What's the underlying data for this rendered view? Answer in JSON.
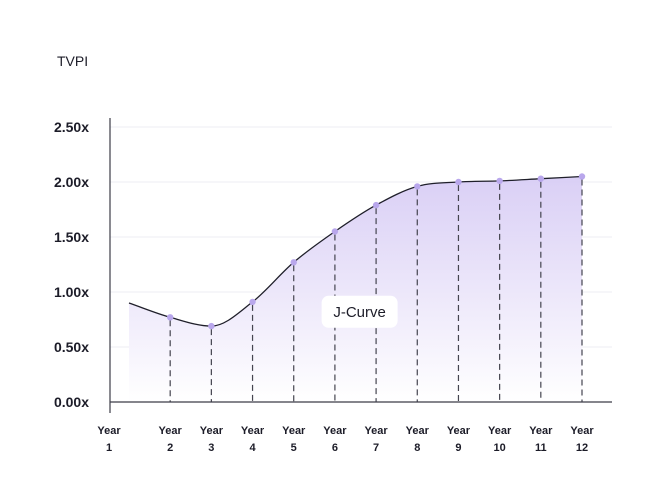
{
  "chart_data": {
    "type": "area",
    "title": "",
    "ylabel": "TVPI",
    "xlabel": "",
    "categories": [
      [
        "Year",
        "1"
      ],
      [
        "Year",
        "2"
      ],
      [
        "Year",
        "3"
      ],
      [
        "Year",
        "4"
      ],
      [
        "Year",
        "5"
      ],
      [
        "Year",
        "6"
      ],
      [
        "Year",
        "7"
      ],
      [
        "Year",
        "8"
      ],
      [
        "Year",
        "9"
      ],
      [
        "Year",
        "10"
      ],
      [
        "Year",
        "11"
      ],
      [
        "Year",
        "12"
      ]
    ],
    "series": [
      {
        "x": [
          1,
          2,
          3,
          4,
          5,
          6,
          7,
          8,
          9,
          10,
          11,
          12
        ],
        "values": [
          0.9,
          0.77,
          0.69,
          0.91,
          1.27,
          1.55,
          1.79,
          1.96,
          2.0,
          2.01,
          2.03,
          2.05
        ]
      }
    ],
    "markers_at": [
      2,
      3,
      4,
      5,
      6,
      7,
      8,
      9,
      10,
      11,
      12
    ],
    "y_ticks": [
      "0.00x",
      "0.50x",
      "1.00x",
      "1.50x",
      "2.00x",
      "2.50x"
    ],
    "y_tick_values": [
      0,
      0.5,
      1.0,
      1.5,
      2.0,
      2.5
    ],
    "ylim": [
      0,
      2.5
    ],
    "xlim": [
      1,
      12
    ],
    "grid": true,
    "annotation": {
      "text": "J-Curve",
      "x": 6.6,
      "y": 0.82
    },
    "colors": {
      "line": "#1f1f2a",
      "marker": "#b9a7ec",
      "fill_top": "#d8cdf5",
      "fill_bottom": "#ffffff",
      "grid": "#ededf3",
      "axis": "#3c3c48",
      "dash": "#44444f"
    }
  }
}
